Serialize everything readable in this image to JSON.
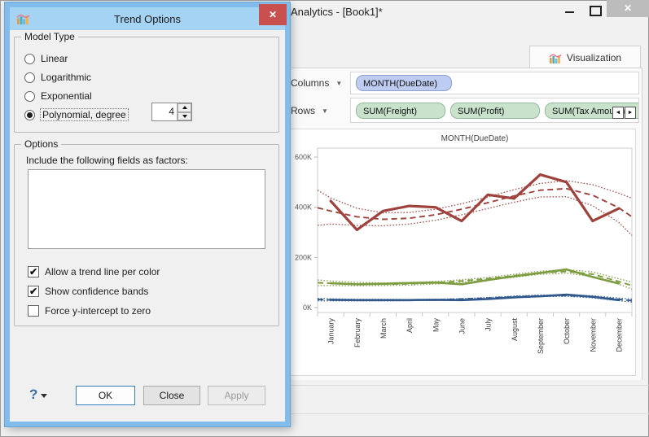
{
  "window": {
    "title": "Analytics - [Book1]*",
    "controls": {
      "minimize": "minimize",
      "maximize": "maximize",
      "close": "✕"
    },
    "tab": {
      "label": "Visualization"
    },
    "shelves": {
      "columns_label": "Columns",
      "rows_label": "Rows",
      "dropdown_glyph": "▼",
      "columns_pills": [
        "MONTH(DueDate)"
      ],
      "rows_pills": [
        "SUM(Freight)",
        "SUM(Profit)",
        "SUM(Tax Amount)"
      ],
      "scroll_left": "◄",
      "scroll_right": "►"
    }
  },
  "dialog": {
    "title": "Trend Options",
    "close_glyph": "✕",
    "model_type": {
      "legend": "Model Type",
      "options": [
        {
          "label": "Linear",
          "selected": false
        },
        {
          "label": "Logarithmic",
          "selected": false
        },
        {
          "label": "Exponential",
          "selected": false
        },
        {
          "label": "Polynomial, degree",
          "selected": true
        }
      ],
      "degree_value": "4"
    },
    "options": {
      "legend": "Options",
      "factors_label": "Include the following fields as factors:",
      "factors_list": [],
      "checkboxes": [
        {
          "label": "Allow a trend line per color",
          "checked": true,
          "glyph": "✔"
        },
        {
          "label": "Show confidence bands",
          "checked": true,
          "glyph": "✔"
        },
        {
          "label": "Force y-intercept to zero",
          "checked": false,
          "glyph": ""
        }
      ]
    },
    "footer": {
      "help": "?",
      "ok": "OK",
      "close": "Close",
      "apply": "Apply"
    }
  },
  "chart_data": {
    "type": "line",
    "title": "MONTH(DueDate)",
    "x": [
      "January",
      "February",
      "March",
      "April",
      "May",
      "June",
      "July",
      "August",
      "September",
      "October",
      "November",
      "December"
    ],
    "ylim": [
      0,
      600
    ],
    "yticks": [
      0,
      200,
      400,
      600
    ],
    "ytick_labels": [
      "0K",
      "200K",
      "400K",
      "600K"
    ],
    "grid": false,
    "legend": "none",
    "trend_model": "Polynomial, degree 4",
    "confidence_bands": true,
    "units": "K (thousands)",
    "series": [
      {
        "name": "SUM(Freight)",
        "color": "#9f423d",
        "band_color": "#aa5b55",
        "width": 3.2,
        "values": [
          425,
          310,
          385,
          405,
          400,
          345,
          450,
          435,
          530,
          500,
          345,
          395
        ],
        "trend_edge_to_edge": [
          398,
          385,
          362,
          352,
          356,
          370,
          392,
          418,
          445,
          468,
          474,
          448,
          398,
          362
        ],
        "band_delta": [
          70,
          52,
          34,
          26,
          23,
          22,
          22,
          23,
          25,
          27,
          32,
          42,
          58,
          74
        ]
      },
      {
        "name": "SUM(Profit)",
        "color": "#7d9c40",
        "band_color": "#8fa75b",
        "width": 2.6,
        "values": [
          97,
          93,
          95,
          98,
          100,
          93,
          110,
          125,
          138,
          152,
          122,
          96
        ],
        "trend_edge_to_edge": [
          99,
          97,
          94,
          93,
          95,
          99,
          106,
          115,
          127,
          139,
          144,
          133,
          104,
          88
        ],
        "band_delta": [
          11,
          9,
          7,
          5,
          5,
          5,
          5,
          5,
          6,
          6,
          7,
          9,
          11,
          14
        ]
      },
      {
        "name": "SUM(Tax Amount)",
        "color": "#30588c",
        "band_color": "#4a6f9e",
        "width": 2.6,
        "values": [
          31,
          30,
          30,
          30,
          31,
          30,
          34,
          41,
          45,
          52,
          43,
          30
        ],
        "trend_edge_to_edge": [
          32,
          31,
          30,
          30,
          30,
          31,
          34,
          38,
          43,
          47,
          48,
          43,
          33,
          28
        ],
        "band_delta": [
          5,
          4,
          3,
          3,
          2,
          2,
          2,
          2,
          3,
          3,
          3,
          4,
          5,
          6
        ]
      }
    ]
  }
}
